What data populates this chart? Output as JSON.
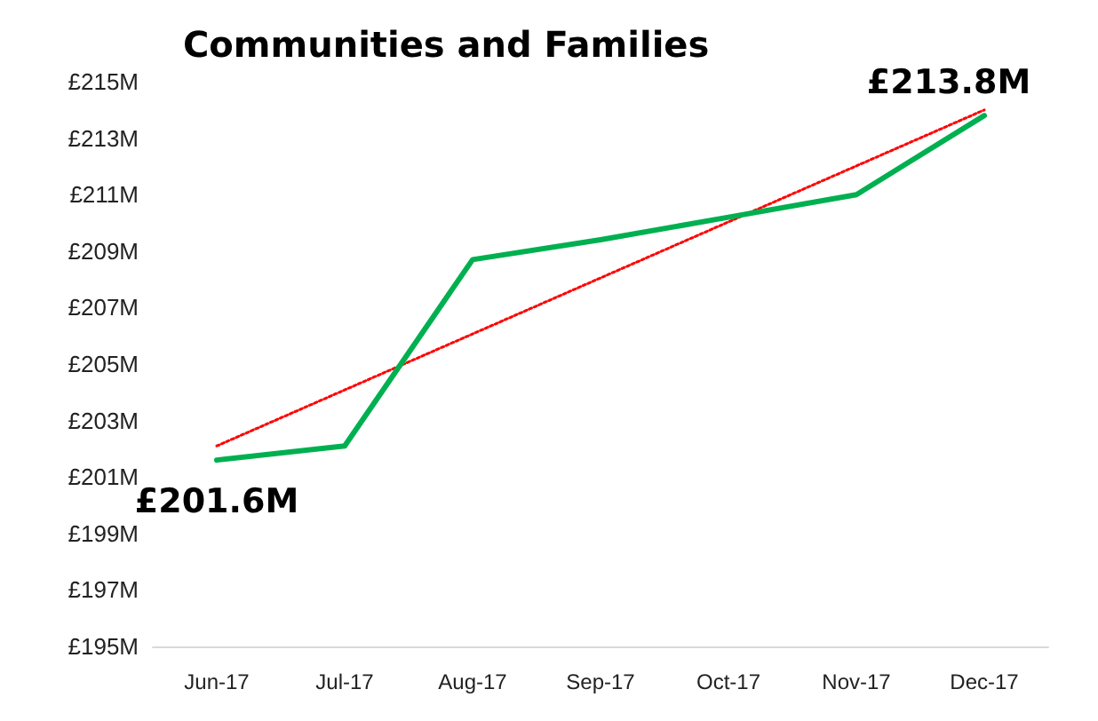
{
  "chart_data": {
    "type": "line",
    "title": "Communities and Families",
    "categories": [
      "Jun-17",
      "Jul-17",
      "Aug-17",
      "Sep-17",
      "Oct-17",
      "Nov-17",
      "Dec-17"
    ],
    "series": [
      {
        "color": "#00b050",
        "values": [
          201.6,
          202.1,
          208.7,
          209.4,
          210.2,
          211.0,
          213.8
        ],
        "value_labels": [
          "£201.6M",
          null,
          null,
          null,
          null,
          null,
          "£213.8M"
        ]
      },
      {
        "type": "line",
        "color": "#ff0000",
        "line_style": "dotted",
        "x": [
          "Jun-17",
          "Dec-17"
        ],
        "values": [
          202.1,
          214.0
        ]
      }
    ],
    "ylim": [
      195,
      215
    ],
    "yticks": [
      {
        "value": 195,
        "label": "£195M"
      },
      {
        "value": 197,
        "label": "£197M"
      },
      {
        "value": 199,
        "label": "£199M"
      },
      {
        "value": 201,
        "label": "£201M"
      },
      {
        "value": 203,
        "label": "£203M"
      },
      {
        "value": 205,
        "label": "£205M"
      },
      {
        "value": 207,
        "label": "£207M"
      },
      {
        "value": 209,
        "label": "£209M"
      },
      {
        "value": 211,
        "label": "£211M"
      },
      {
        "value": 213,
        "label": "£213M"
      },
      {
        "value": 215,
        "label": "£215M"
      }
    ],
    "grid": false,
    "marker": "none",
    "line_style": "solid"
  }
}
